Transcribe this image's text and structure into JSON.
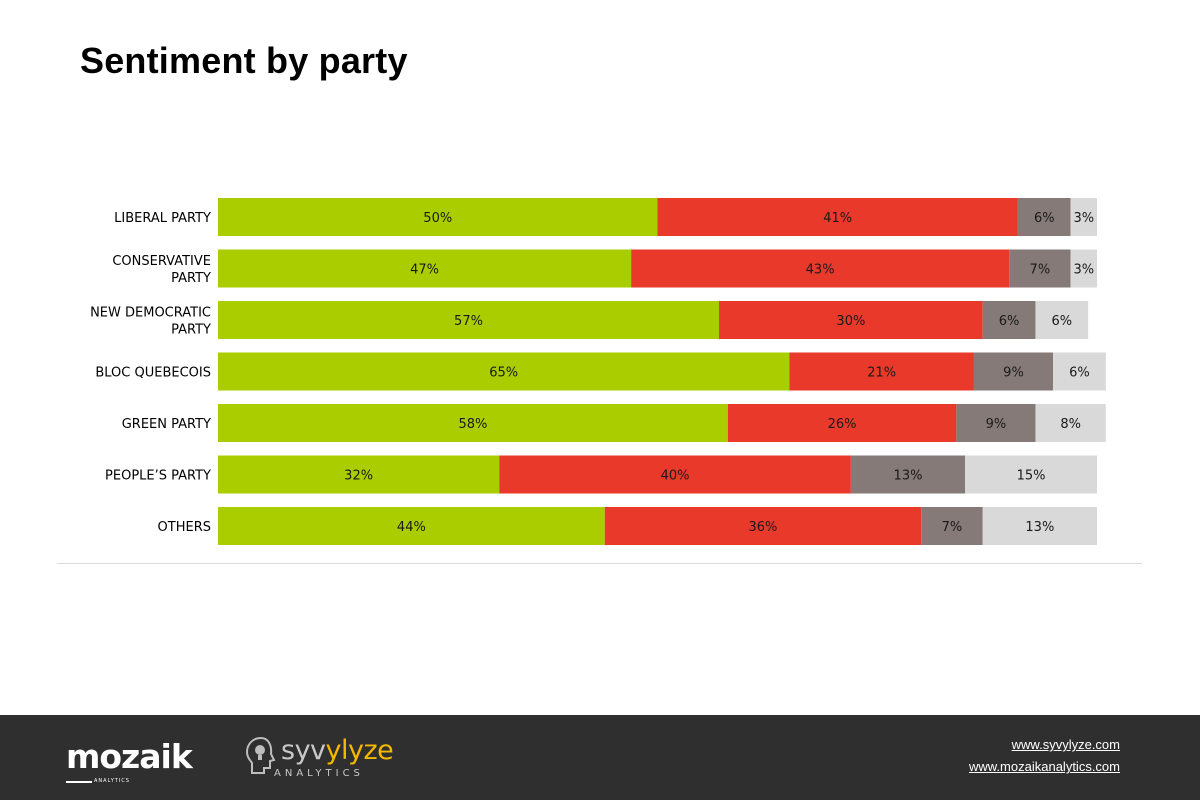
{
  "page": {
    "title": "Sentiment by party"
  },
  "chart_data": {
    "type": "bar",
    "orientation": "horizontal",
    "stacked": true,
    "normalized": true,
    "categories": [
      [
        "LIBERAL PARTY"
      ],
      [
        "CONSERVATIVE",
        "PARTY"
      ],
      [
        "NEW DEMOCRATIC",
        "PARTY"
      ],
      [
        "BLOC QUEBECOIS"
      ],
      [
        "GREEN PARTY"
      ],
      [
        "PEOPLE’S PARTY"
      ],
      [
        "OTHERS"
      ]
    ],
    "series": [
      {
        "color": "#aacd00",
        "values": [
          50,
          47,
          57,
          65,
          58,
          32,
          44
        ]
      },
      {
        "color": "#e8392a",
        "values": [
          41,
          43,
          30,
          21,
          26,
          40,
          36
        ]
      },
      {
        "color": "#857a77",
        "values": [
          6,
          7,
          6,
          9,
          9,
          13,
          7
        ]
      },
      {
        "color": "#d9d9d9",
        "values": [
          3,
          3,
          6,
          6,
          8,
          15,
          13
        ]
      }
    ],
    "value_suffix": "%",
    "xlim": [
      0,
      100
    ],
    "grid": false,
    "legend": "none"
  },
  "footer": {
    "logo1": {
      "text": "mozaik",
      "sub": "ANALYTICS"
    },
    "logo2": {
      "text_a": "syv",
      "text_b": "ylyze",
      "sub": "ANALYTICS"
    },
    "links": [
      "www.syvylyze.com",
      "www.mozaikanalytics.com"
    ]
  }
}
